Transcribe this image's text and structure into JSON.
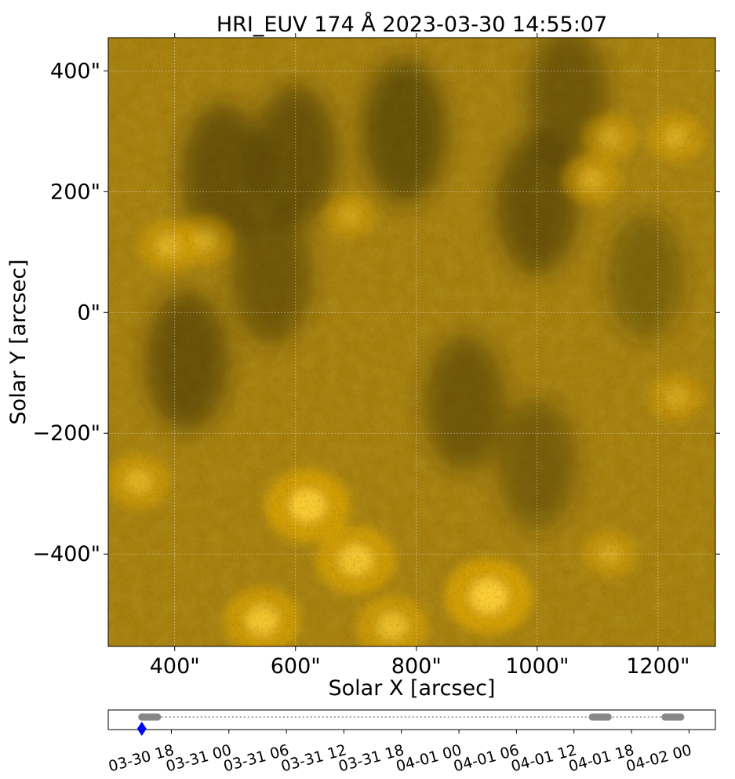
{
  "chart_data": [
    {
      "type": "heatmap",
      "title": "HRI_EUV 174 Å 2023-03-30 14:55:07",
      "xlabel": "Solar X [arcsec]",
      "ylabel": "Solar Y [arcsec]",
      "xlim": [
        290,
        1295
      ],
      "ylim": [
        -553,
        455
      ],
      "xticks": [
        400,
        600,
        800,
        1000,
        1200
      ],
      "xtick_labels": [
        "400\"",
        "600\"",
        "800\"",
        "1000\"",
        "1200\""
      ],
      "yticks": [
        400,
        200,
        0,
        -200,
        -400
      ],
      "ytick_labels": [
        "400\"",
        "200\"",
        "0\"",
        "−200\"",
        "−400\""
      ],
      "grid": true,
      "colormap": [
        "#2e2405",
        "#6b5510",
        "#a67e0c",
        "#e0a808",
        "#ffd23a"
      ],
      "bright_regions": [
        {
          "x": 620,
          "y": -320,
          "intensity": 0.95
        },
        {
          "x": 700,
          "y": -410,
          "intensity": 0.85
        },
        {
          "x": 920,
          "y": -470,
          "intensity": 1.0
        },
        {
          "x": 545,
          "y": -510,
          "intensity": 0.8
        },
        {
          "x": 760,
          "y": -520,
          "intensity": 0.7
        },
        {
          "x": 340,
          "y": -280,
          "intensity": 0.55
        },
        {
          "x": 390,
          "y": 110,
          "intensity": 0.5
        },
        {
          "x": 450,
          "y": 120,
          "intensity": 0.45
        },
        {
          "x": 1090,
          "y": 220,
          "intensity": 0.45
        },
        {
          "x": 1120,
          "y": 290,
          "intensity": 0.4
        },
        {
          "x": 1230,
          "y": 290,
          "intensity": 0.45
        },
        {
          "x": 690,
          "y": 160,
          "intensity": 0.35
        },
        {
          "x": 1230,
          "y": -140,
          "intensity": 0.4
        },
        {
          "x": 1120,
          "y": -400,
          "intensity": 0.4
        }
      ],
      "dark_regions": [
        {
          "x": 780,
          "y": 300,
          "depth": 0.55
        },
        {
          "x": 600,
          "y": 260,
          "depth": 0.5
        },
        {
          "x": 480,
          "y": 230,
          "depth": 0.5
        },
        {
          "x": 1000,
          "y": 180,
          "depth": 0.5
        },
        {
          "x": 1050,
          "y": 360,
          "depth": 0.45
        },
        {
          "x": 880,
          "y": -150,
          "depth": 0.45
        },
        {
          "x": 420,
          "y": -80,
          "depth": 0.5
        },
        {
          "x": 560,
          "y": 60,
          "depth": 0.45
        },
        {
          "x": 1000,
          "y": -250,
          "depth": 0.4
        },
        {
          "x": 1180,
          "y": 60,
          "depth": 0.35
        }
      ]
    },
    {
      "type": "scatter",
      "tick_labels": [
        "03-30 18",
        "03-31 00",
        "03-31 06",
        "03-31 12",
        "03-31 18",
        "04-01 00",
        "04-01 06",
        "04-01 12",
        "04-01 18",
        "04-02 00"
      ],
      "tick_times": [
        "2023-03-30 18:00",
        "2023-03-31 00:00",
        "2023-03-31 06:00",
        "2023-03-31 12:00",
        "2023-03-31 18:00",
        "2023-04-01 00:00",
        "2023-04-01 06:00",
        "2023-04-01 12:00",
        "2023-04-01 18:00",
        "2023-04-02 00:00"
      ],
      "xlim": [
        "2023-03-30 11:25",
        "2023-04-02 02:45"
      ],
      "series": [
        {
          "marker": "circle",
          "color": "#888888",
          "x_range": [
            "2023-03-30 14:55",
            "2023-03-30 16:40"
          ]
        },
        {
          "marker": "circle",
          "color": "#888888",
          "x_range": [
            "2023-04-01 13:55",
            "2023-04-01 15:40"
          ]
        },
        {
          "marker": "circle",
          "color": "#888888",
          "x_range": [
            "2023-04-01 21:30",
            "2023-04-01 23:20"
          ]
        }
      ],
      "connector": {
        "style": "dotted",
        "color": "#888888"
      },
      "current": {
        "x": "2023-03-30 14:55",
        "marker": "diamond",
        "color": "#0000ff"
      }
    }
  ]
}
